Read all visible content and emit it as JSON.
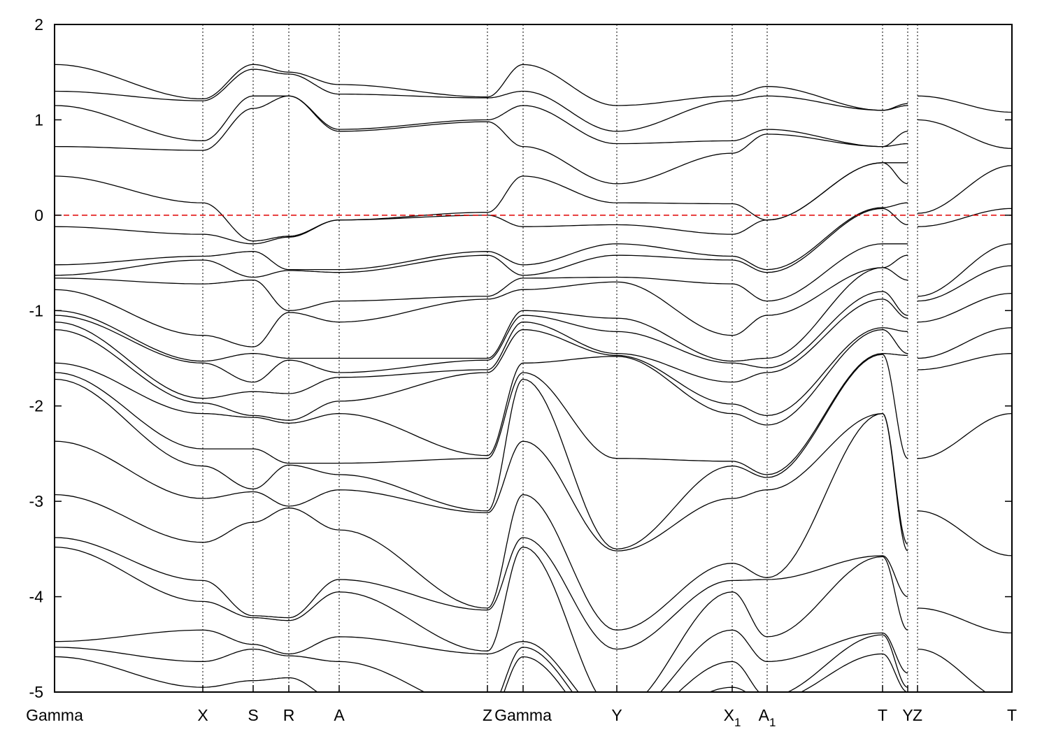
{
  "chart_data": {
    "type": "line",
    "title": "",
    "xlabel": "",
    "ylabel": "",
    "ylim": [
      -5,
      2
    ],
    "yticks": [
      "-5",
      "-4",
      "-3",
      "-2",
      "-1",
      "0",
      "1",
      "2"
    ],
    "fermi_level": 0,
    "fermi_color": "#e00000",
    "band_color": "#000000",
    "kpoints": [
      {
        "label": "Gamma",
        "sub": "",
        "k": 0
      },
      {
        "label": "X",
        "sub": "",
        "k": 2.12
      },
      {
        "label": "S",
        "sub": "",
        "k": 2.84
      },
      {
        "label": "R",
        "sub": "",
        "k": 3.35
      },
      {
        "label": "A",
        "sub": "",
        "k": 4.07
      },
      {
        "label": "Z",
        "sub": "",
        "k": 6.19
      },
      {
        "label": "Gamma",
        "sub": "",
        "k": 6.7
      },
      {
        "label": "Y",
        "sub": "",
        "k": 8.04
      },
      {
        "label": "X",
        "sub": "1",
        "k": 9.69
      },
      {
        "label": "A",
        "sub": "1",
        "k": 10.19
      },
      {
        "label": "T",
        "sub": "",
        "k": 11.84
      },
      {
        "label": "Y",
        "sub": "",
        "k": 12.2
      },
      {
        "label": "Z",
        "sub": "",
        "k": 12.34
      },
      {
        "label": "T",
        "sub": "",
        "k": 13.69
      }
    ],
    "segments": [
      {
        "kpoint_indices": [
          0,
          1,
          2,
          3,
          4,
          5,
          6,
          7,
          8,
          9,
          10,
          11
        ],
        "energies_at_kpoints": [
          [
            1.58,
            1.3,
            1.15,
            0.72,
            0.41,
            -0.12,
            -0.52,
            -0.63,
            -0.66,
            -0.78,
            -1.0,
            -1.05,
            -1.12,
            -1.2,
            -1.55,
            -1.65,
            -1.72,
            -2.37,
            -2.93,
            -3.38,
            -3.48,
            -4.47,
            -4.53,
            -4.63
          ],
          [
            1.22,
            1.2,
            0.78,
            0.68,
            0.13,
            -0.2,
            -0.43,
            -0.47,
            -0.72,
            -1.26,
            -1.53,
            -1.55,
            -1.92,
            -1.97,
            -2.08,
            -2.45,
            -2.63,
            -2.97,
            -3.43,
            -3.83,
            -4.05,
            -4.35,
            -4.68,
            -4.95
          ],
          [
            1.58,
            1.53,
            1.25,
            1.12,
            -0.27,
            -0.3,
            -0.38,
            -0.65,
            -0.68,
            -1.38,
            -1.45,
            -1.75,
            -1.85,
            -2.1,
            -2.12,
            -2.45,
            -2.87,
            -2.9,
            -3.22,
            -4.2,
            -4.22,
            -4.5,
            -4.55,
            -4.88
          ],
          [
            1.5,
            1.48,
            1.25,
            1.25,
            -0.22,
            -0.23,
            -0.57,
            -0.58,
            -1.0,
            -1.02,
            -1.5,
            -1.52,
            -1.87,
            -2.15,
            -2.18,
            -2.6,
            -2.62,
            -3.05,
            -3.07,
            -4.22,
            -4.25,
            -4.6,
            -4.62,
            -4.85
          ],
          [
            1.37,
            1.27,
            0.9,
            0.88,
            -0.05,
            -0.05,
            -0.57,
            -0.6,
            -0.9,
            -1.12,
            -1.5,
            -1.65,
            -1.7,
            -1.95,
            -2.08,
            -2.6,
            -2.72,
            -2.88,
            -3.3,
            -3.82,
            -3.95,
            -4.42,
            -4.68,
            -5.1
          ],
          [
            1.24,
            1.23,
            1.0,
            0.98,
            0.03,
            0.0,
            -0.38,
            -0.42,
            -0.85,
            -0.88,
            -1.5,
            -1.52,
            -1.62,
            -1.65,
            -2.52,
            -2.55,
            -3.1,
            -3.12,
            -4.12,
            -4.14,
            -4.57,
            -4.6,
            -5.2,
            -5.3
          ],
          [
            1.58,
            1.3,
            1.15,
            0.72,
            0.41,
            -0.12,
            -0.52,
            -0.63,
            -0.66,
            -0.78,
            -1.0,
            -1.05,
            -1.12,
            -1.2,
            -1.55,
            -1.65,
            -1.72,
            -2.37,
            -2.93,
            -3.38,
            -3.48,
            -4.47,
            -4.53,
            -4.63
          ],
          [
            1.15,
            0.88,
            0.75,
            0.33,
            0.13,
            -0.1,
            -0.3,
            -0.42,
            -0.65,
            -0.7,
            -1.08,
            -1.22,
            -1.45,
            -1.47,
            -1.48,
            -2.55,
            -3.5,
            -3.52,
            -4.35,
            -4.55,
            -5.2,
            -5.3,
            -5.4,
            -5.5
          ],
          [
            1.25,
            1.2,
            0.78,
            0.65,
            0.12,
            -0.2,
            -0.43,
            -0.47,
            -0.72,
            -1.26,
            -1.53,
            -1.55,
            -1.75,
            -1.98,
            -2.08,
            -2.58,
            -2.63,
            -2.97,
            -3.65,
            -3.83,
            -3.95,
            -4.35,
            -4.68,
            -4.95
          ],
          [
            1.35,
            1.25,
            0.9,
            0.85,
            -0.05,
            -0.05,
            -0.57,
            -0.6,
            -0.9,
            -1.05,
            -1.5,
            -1.6,
            -1.65,
            -2.1,
            -2.2,
            -2.72,
            -2.75,
            -2.88,
            -3.8,
            -3.82,
            -4.42,
            -4.68,
            -5.05,
            -5.1
          ],
          [
            1.1,
            1.1,
            0.72,
            0.72,
            0.55,
            0.55,
            0.08,
            0.07,
            -0.3,
            -0.55,
            -0.55,
            -0.8,
            -0.88,
            -1.18,
            -1.2,
            -1.45,
            -1.46,
            -2.08,
            -2.08,
            -3.57,
            -3.58,
            -4.38,
            -4.4,
            -4.6
          ],
          [
            1.17,
            1.15,
            0.88,
            0.75,
            0.55,
            0.33,
            0.13,
            -0.1,
            -0.3,
            -0.42,
            -0.68,
            -1.05,
            -1.08,
            -1.22,
            -1.45,
            -1.47,
            -2.55,
            -3.45,
            -3.52,
            -4.0,
            -4.35,
            -4.8,
            -4.95,
            -5.0
          ]
        ]
      },
      {
        "kpoint_indices": [
          12,
          13
        ],
        "energies_at_kpoints": [
          [
            1.25,
            1.0,
            0.02,
            -0.12,
            -0.85,
            -0.9,
            -1.12,
            -1.5,
            -1.62,
            -2.55,
            -3.1,
            -4.12,
            -4.55
          ],
          [
            1.08,
            0.7,
            0.52,
            0.07,
            -0.3,
            -0.53,
            -0.82,
            -1.18,
            -1.45,
            -2.08,
            -3.57,
            -4.38,
            -5.1
          ]
        ]
      }
    ]
  }
}
